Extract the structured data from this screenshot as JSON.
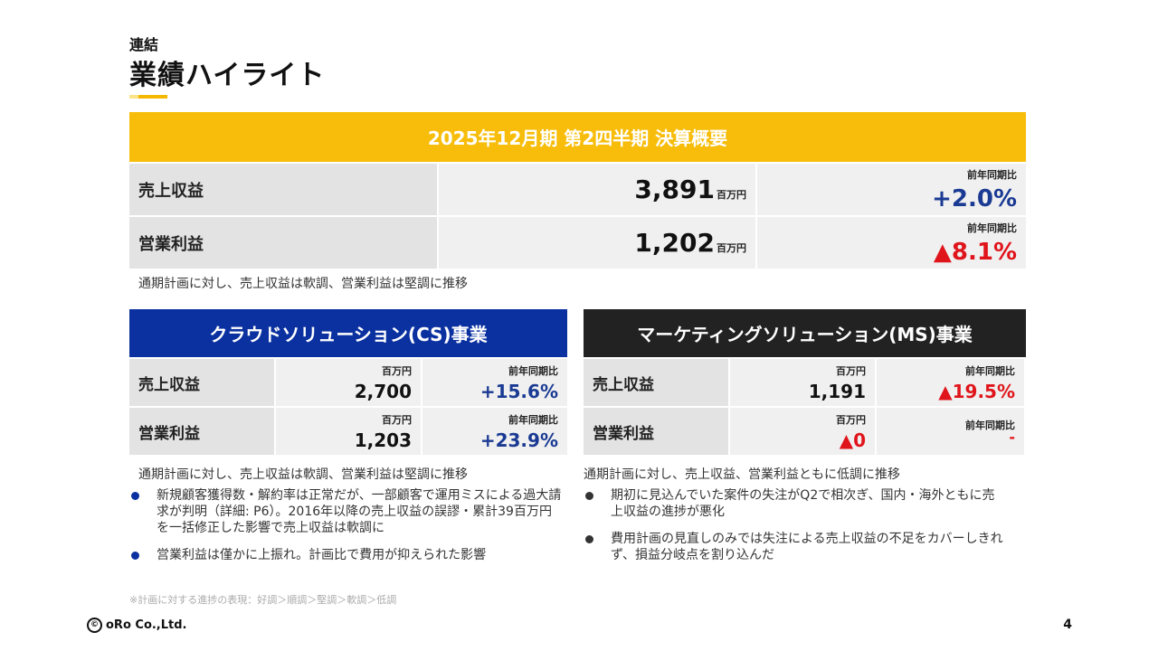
{
  "header": {
    "small_title": "連結",
    "title": "業績ハイライト"
  },
  "summary": {
    "heading": "2025年12月期 第2四半期 決算概要",
    "rows": [
      {
        "label": "売上収益",
        "value": "3,891",
        "unit": "百万円",
        "cmp_label": "前年同期比",
        "cmp_value": "+2.0%"
      },
      {
        "label": "営業利益",
        "value": "1,202",
        "unit": "百万円",
        "cmp_label": "前年同期比",
        "cmp_value": "▲8.1%"
      }
    ],
    "note": "通期計画に対し、売上収益は軟調、営業利益は堅調に推移"
  },
  "cs": {
    "heading": "クラウドソリューション(CS)事業",
    "rows": [
      {
        "label": "売上収益",
        "unit": "百万円",
        "value": "2,700",
        "cmp_label": "前年同期比",
        "cmp_value": "+15.6%"
      },
      {
        "label": "営業利益",
        "unit": "百万円",
        "value": "1,203",
        "cmp_label": "前年同期比",
        "cmp_value": "+23.9%"
      }
    ],
    "note": "通期計画に対し、売上収益は軟調、営業利益は堅調に推移",
    "bullets": [
      "新規顧客獲得数・解約率は正常だが、一部顧客で運用ミスによる過大請求が判明（詳細: P6）。2016年以降の売上収益の誤謬・累計39百万円を一括修正した影響で売上収益は軟調に",
      "営業利益は僅かに上振れ。計画比で費用が抑えられた影響"
    ]
  },
  "ms": {
    "heading": "マーケティングソリューション(MS)事業",
    "rows": [
      {
        "label": "売上収益",
        "unit": "百万円",
        "value": "1,191",
        "cmp_label": "前年同期比",
        "cmp_value": "▲19.5%"
      },
      {
        "label": "営業利益",
        "unit": "百万円",
        "value": "▲0",
        "cmp_label": "前年同期比",
        "cmp_value": "-"
      }
    ],
    "note": "通期計画に対し、売上収益、営業利益ともに低調に推移",
    "bullets": [
      "期初に見込んでいた案件の失注がQ2で相次ぎ、国内・海外ともに売上収益の進捗が悪化",
      "費用計画の見直しのみでは失注による売上収益の不足をカバーしきれず、損益分岐点を割り込んだ"
    ]
  },
  "footnote": "※計画に対する進捗の表現：好調＞順調＞堅調＞軟調＞低調",
  "footer": {
    "copyright_symbol": "©",
    "company": "oRo Co.,Ltd.",
    "page_number": "4"
  },
  "colors": {
    "accent_yellow": "#f7bd0a",
    "cs_blue": "#0b31a0",
    "ms_dark": "#222222",
    "positive_blue": "#1a3a93",
    "negative_red": "#e0151b"
  }
}
